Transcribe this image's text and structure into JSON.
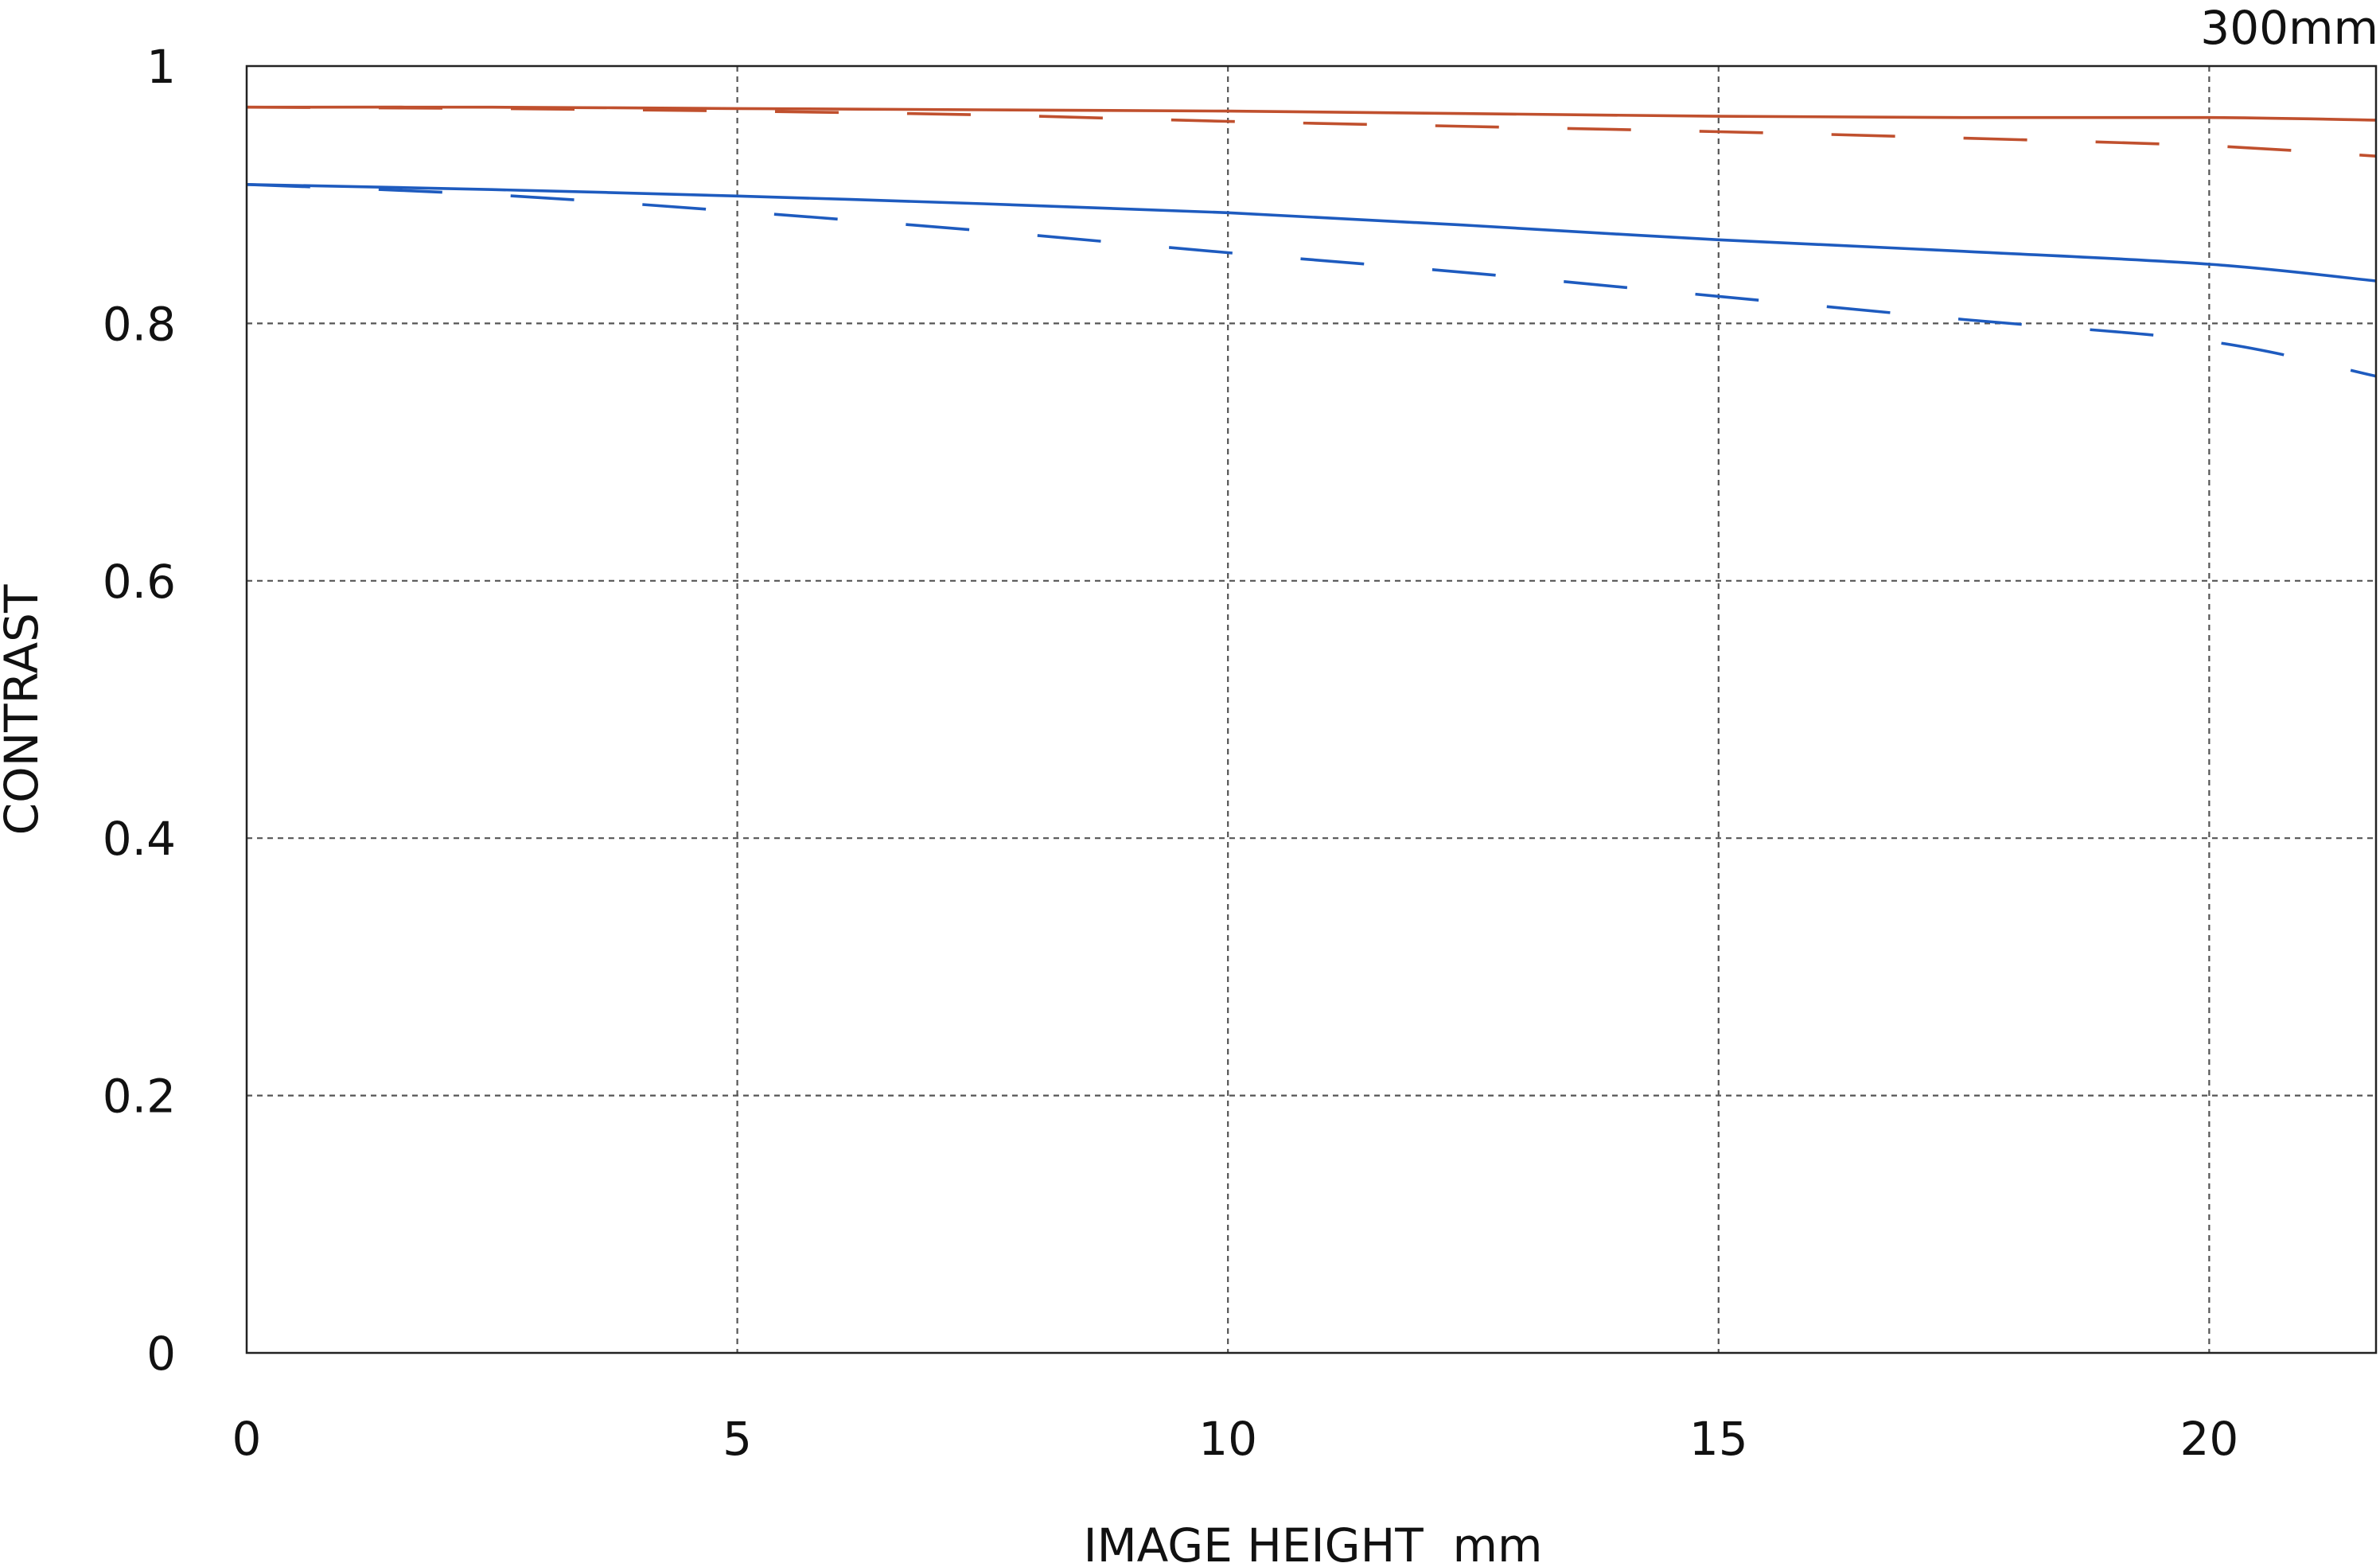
{
  "chart_data": {
    "type": "line",
    "title": "",
    "corner_label": "300mm",
    "xlabel": "IMAGE HEIGHT  mm",
    "ylabel": "CONTRAST",
    "xlim": [
      0,
      21.7
    ],
    "ylim": [
      0,
      1
    ],
    "xticks": [
      0,
      5,
      10,
      15,
      20
    ],
    "xtick_labels": [
      "0",
      "5",
      "10",
      "15",
      "20"
    ],
    "yticks": [
      0,
      0.2,
      0.4,
      0.6,
      0.8,
      1
    ],
    "ytick_labels": [
      "0",
      "0.2",
      "0.4",
      "0.6",
      "0.8",
      "1"
    ],
    "grid": true,
    "legend": "none",
    "x": [
      0,
      2.5,
      5,
      7.5,
      10,
      12.5,
      15,
      17.5,
      20,
      21.7
    ],
    "series": [
      {
        "color": "#c0502e",
        "dash": "solid",
        "values": [
          0.968,
          0.968,
          0.967,
          0.966,
          0.965,
          0.963,
          0.961,
          0.96,
          0.96,
          0.958
        ]
      },
      {
        "color": "#c0502e",
        "dash": "dashed",
        "values": [
          0.968,
          0.967,
          0.965,
          0.962,
          0.957,
          0.953,
          0.949,
          0.944,
          0.938,
          0.93
        ]
      },
      {
        "color": "#1e5bbf",
        "dash": "solid",
        "values": [
          0.908,
          0.904,
          0.899,
          0.893,
          0.886,
          0.876,
          0.865,
          0.856,
          0.846,
          0.833
        ]
      },
      {
        "color": "#1e5bbf",
        "dash": "dashed",
        "values": [
          0.908,
          0.9,
          0.887,
          0.872,
          0.855,
          0.839,
          0.821,
          0.803,
          0.786,
          0.759
        ]
      }
    ]
  }
}
